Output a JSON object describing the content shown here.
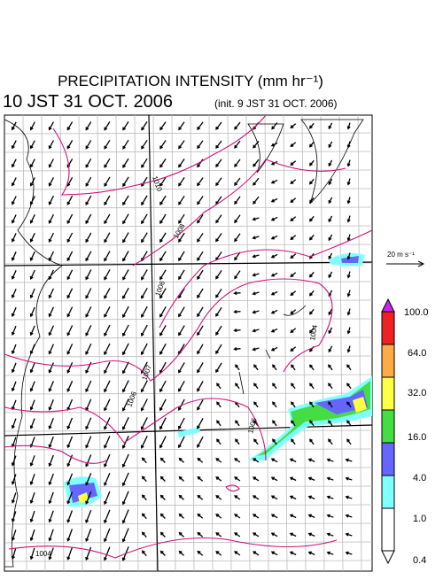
{
  "header": {
    "title": "PRECIPITATION INTENSITY (mm hr⁻¹)",
    "time": "10 JST 31 OCT. 2006",
    "init": "(init. 9 JST 31 OCT. 2006)"
  },
  "wind_scale": {
    "label": "20 m s⁻¹"
  },
  "colorbar": {
    "labels": [
      "100.0",
      "64.0",
      "32.0",
      "16.0",
      "4.0",
      "1.0",
      "0.4"
    ]
  },
  "contours": {
    "labels": [
      "1010",
      "1008",
      "1006",
      "1007",
      "1006",
      "1004",
      "1004",
      "1006"
    ]
  }
}
